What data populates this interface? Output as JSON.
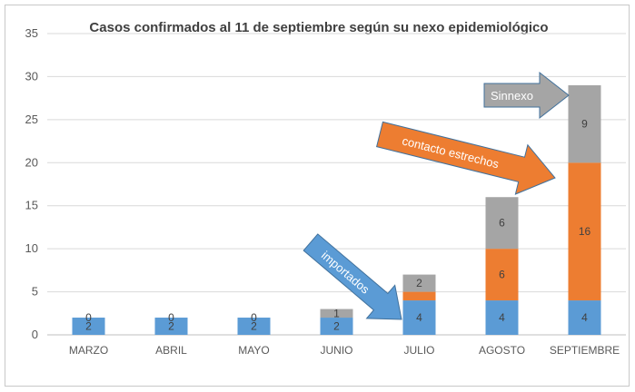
{
  "chart_data": {
    "type": "bar",
    "stacked": true,
    "title": "Casos confirmados al 11 de septiembre según su nexo epidemiológico",
    "xlabel": "",
    "ylabel": "",
    "ylim": [
      0,
      35
    ],
    "yticks": [
      0,
      5,
      10,
      15,
      20,
      25,
      30,
      35
    ],
    "grid": true,
    "categories": [
      "MARZO",
      "ABRIL",
      "MAYO",
      "JUNIO",
      "JULIO",
      "AGOSTO",
      "SEPTIEMBRE"
    ],
    "series": [
      {
        "key": "importados",
        "color": "#5B9BD5",
        "values": [
          2,
          2,
          2,
          2,
          4,
          4,
          4
        ]
      },
      {
        "key": "contacto",
        "color": "#ED7D31",
        "values": [
          0,
          0,
          0,
          0,
          1,
          6,
          16
        ]
      },
      {
        "key": "sinnexo",
        "color": "#A5A5A5",
        "values": [
          0,
          0,
          0,
          1,
          2,
          6,
          9
        ]
      }
    ],
    "data_labels": {
      "importados": [
        "2",
        "2",
        "2",
        "2",
        "4",
        "4",
        "4"
      ],
      "contacto": [
        "0",
        "0",
        "0",
        "",
        "",
        "6",
        "16"
      ],
      "sinnexo": [
        "",
        "",
        "",
        "1",
        "2",
        "6",
        "9"
      ]
    },
    "annotations": {
      "importados": {
        "text": "importados",
        "color": "#5B9BD5"
      },
      "contacto": {
        "text": "contacto estrechos",
        "color": "#ED7D31"
      },
      "sinnexo": {
        "text": "Sinnexo",
        "color": "#A5A5A5"
      }
    }
  }
}
